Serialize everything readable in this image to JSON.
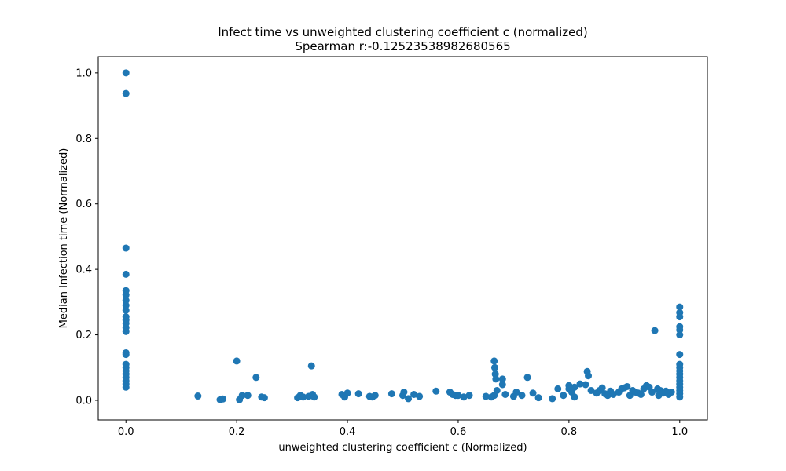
{
  "chart_data": {
    "type": "scatter",
    "title": "Infect time vs unweighted clustering coefficient c (normalized)",
    "subtitle": "Spearman r:-0.12523538982680565",
    "xlabel": "unweighted clustering coefficient c (Normalized)",
    "ylabel": "Median Infection time (Normalized)",
    "xlim": [
      -0.05,
      1.05
    ],
    "ylim": [
      -0.06,
      1.05
    ],
    "xticks": [
      {
        "value": 0.0,
        "label": "0.0"
      },
      {
        "value": 0.2,
        "label": "0.2"
      },
      {
        "value": 0.4,
        "label": "0.4"
      },
      {
        "value": 0.6,
        "label": "0.6"
      },
      {
        "value": 0.8,
        "label": "0.8"
      },
      {
        "value": 1.0,
        "label": "1.0"
      }
    ],
    "yticks": [
      {
        "value": 0.0,
        "label": "0.0"
      },
      {
        "value": 0.2,
        "label": "0.2"
      },
      {
        "value": 0.4,
        "label": "0.4"
      },
      {
        "value": 0.6,
        "label": "0.6"
      },
      {
        "value": 0.8,
        "label": "0.8"
      },
      {
        "value": 1.0,
        "label": "1.0"
      }
    ],
    "grid": false,
    "marker_color": "#1f77b4",
    "points": [
      [
        0.0,
        1.0
      ],
      [
        0.0,
        0.937
      ],
      [
        0.0,
        0.465
      ],
      [
        0.0,
        0.385
      ],
      [
        0.0,
        0.335
      ],
      [
        0.0,
        0.322
      ],
      [
        0.0,
        0.305
      ],
      [
        0.0,
        0.29
      ],
      [
        0.0,
        0.275
      ],
      [
        0.0,
        0.255
      ],
      [
        0.0,
        0.245
      ],
      [
        0.0,
        0.235
      ],
      [
        0.0,
        0.222
      ],
      [
        0.0,
        0.21
      ],
      [
        0.0,
        0.145
      ],
      [
        0.0,
        0.14
      ],
      [
        0.0,
        0.11
      ],
      [
        0.0,
        0.1
      ],
      [
        0.0,
        0.09
      ],
      [
        0.0,
        0.08
      ],
      [
        0.0,
        0.07
      ],
      [
        0.0,
        0.06
      ],
      [
        0.0,
        0.05
      ],
      [
        0.0,
        0.04
      ],
      [
        0.13,
        0.013
      ],
      [
        0.17,
        0.002
      ],
      [
        0.175,
        0.004
      ],
      [
        0.2,
        0.12
      ],
      [
        0.205,
        0.002
      ],
      [
        0.21,
        0.015
      ],
      [
        0.22,
        0.015
      ],
      [
        0.235,
        0.07
      ],
      [
        0.245,
        0.01
      ],
      [
        0.25,
        0.008
      ],
      [
        0.31,
        0.008
      ],
      [
        0.315,
        0.015
      ],
      [
        0.32,
        0.01
      ],
      [
        0.33,
        0.012
      ],
      [
        0.335,
        0.105
      ],
      [
        0.337,
        0.018
      ],
      [
        0.34,
        0.01
      ],
      [
        0.39,
        0.018
      ],
      [
        0.395,
        0.01
      ],
      [
        0.4,
        0.022
      ],
      [
        0.42,
        0.02
      ],
      [
        0.44,
        0.012
      ],
      [
        0.445,
        0.01
      ],
      [
        0.45,
        0.015
      ],
      [
        0.48,
        0.02
      ],
      [
        0.5,
        0.015
      ],
      [
        0.502,
        0.025
      ],
      [
        0.51,
        0.005
      ],
      [
        0.52,
        0.018
      ],
      [
        0.53,
        0.012
      ],
      [
        0.56,
        0.028
      ],
      [
        0.585,
        0.025
      ],
      [
        0.59,
        0.018
      ],
      [
        0.595,
        0.015
      ],
      [
        0.6,
        0.015
      ],
      [
        0.61,
        0.01
      ],
      [
        0.62,
        0.015
      ],
      [
        0.65,
        0.012
      ],
      [
        0.665,
        0.12
      ],
      [
        0.666,
        0.1
      ],
      [
        0.667,
        0.08
      ],
      [
        0.668,
        0.065
      ],
      [
        0.67,
        0.03
      ],
      [
        0.665,
        0.015
      ],
      [
        0.66,
        0.01
      ],
      [
        0.68,
        0.065
      ],
      [
        0.68,
        0.048
      ],
      [
        0.685,
        0.018
      ],
      [
        0.7,
        0.012
      ],
      [
        0.705,
        0.025
      ],
      [
        0.715,
        0.015
      ],
      [
        0.725,
        0.07
      ],
      [
        0.735,
        0.022
      ],
      [
        0.745,
        0.008
      ],
      [
        0.77,
        0.005
      ],
      [
        0.78,
        0.035
      ],
      [
        0.79,
        0.015
      ],
      [
        0.8,
        0.045
      ],
      [
        0.8,
        0.035
      ],
      [
        0.805,
        0.025
      ],
      [
        0.81,
        0.01
      ],
      [
        0.81,
        0.04
      ],
      [
        0.82,
        0.05
      ],
      [
        0.83,
        0.048
      ],
      [
        0.833,
        0.088
      ],
      [
        0.835,
        0.075
      ],
      [
        0.84,
        0.03
      ],
      [
        0.85,
        0.022
      ],
      [
        0.855,
        0.03
      ],
      [
        0.86,
        0.038
      ],
      [
        0.865,
        0.02
      ],
      [
        0.87,
        0.015
      ],
      [
        0.875,
        0.028
      ],
      [
        0.88,
        0.018
      ],
      [
        0.89,
        0.025
      ],
      [
        0.895,
        0.035
      ],
      [
        0.9,
        0.038
      ],
      [
        0.905,
        0.042
      ],
      [
        0.91,
        0.015
      ],
      [
        0.915,
        0.03
      ],
      [
        0.92,
        0.025
      ],
      [
        0.925,
        0.022
      ],
      [
        0.93,
        0.018
      ],
      [
        0.935,
        0.035
      ],
      [
        0.94,
        0.045
      ],
      [
        0.945,
        0.04
      ],
      [
        0.95,
        0.025
      ],
      [
        0.955,
        0.213
      ],
      [
        0.96,
        0.035
      ],
      [
        0.962,
        0.015
      ],
      [
        0.965,
        0.03
      ],
      [
        0.97,
        0.022
      ],
      [
        0.975,
        0.028
      ],
      [
        0.98,
        0.018
      ],
      [
        0.985,
        0.025
      ],
      [
        1.0,
        0.285
      ],
      [
        1.0,
        0.268
      ],
      [
        1.0,
        0.255
      ],
      [
        1.0,
        0.225
      ],
      [
        1.0,
        0.215
      ],
      [
        1.0,
        0.2
      ],
      [
        1.0,
        0.14
      ],
      [
        1.0,
        0.11
      ],
      [
        1.0,
        0.1
      ],
      [
        1.0,
        0.09
      ],
      [
        1.0,
        0.08
      ],
      [
        1.0,
        0.07
      ],
      [
        1.0,
        0.06
      ],
      [
        1.0,
        0.05
      ],
      [
        1.0,
        0.04
      ],
      [
        1.0,
        0.03
      ],
      [
        1.0,
        0.02
      ],
      [
        1.0,
        0.01
      ]
    ]
  }
}
